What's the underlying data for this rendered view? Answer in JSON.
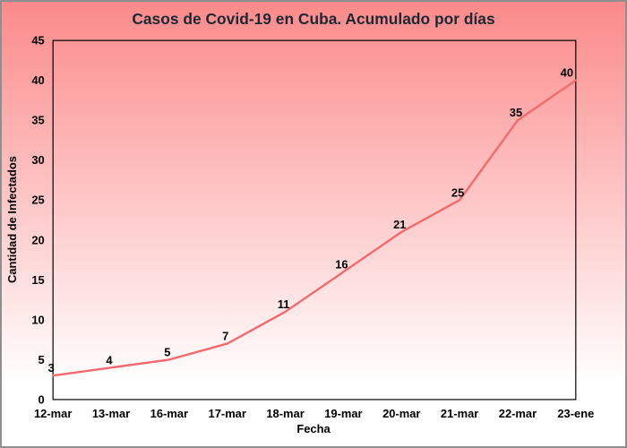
{
  "chart_data": {
    "type": "line",
    "title": "Casos de Covid-19 en Cuba. Acumulado por días",
    "xlabel": "Fecha",
    "ylabel": "Cantidad de Infectados",
    "categories": [
      "12-mar",
      "13-mar",
      "16-mar",
      "17-mar",
      "18-mar",
      "19-mar",
      "20-mar",
      "21-mar",
      "22-mar",
      "23-ene"
    ],
    "values": [
      3,
      4,
      5,
      7,
      11,
      16,
      21,
      25,
      35,
      40
    ],
    "data_labels": [
      "3",
      "4",
      "5",
      "7",
      "11",
      "16",
      "21",
      "25",
      "35",
      "40"
    ],
    "ylim": [
      0,
      45
    ],
    "yticks": [
      0,
      5,
      10,
      15,
      20,
      25,
      30,
      35,
      40,
      45
    ],
    "grid": false,
    "legend": null,
    "markers": false,
    "line_color": "#f4696b",
    "title_color": "#1c2833",
    "axis_line_color": "#000000",
    "background_gradient_top": "#fc8a8a",
    "background_gradient_bottom": "#ffffff",
    "frame_color": "#8f8f8f"
  }
}
